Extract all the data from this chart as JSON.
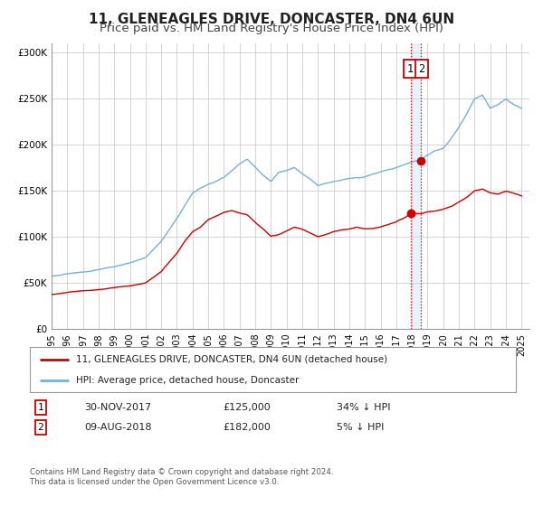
{
  "title": "11, GLENEAGLES DRIVE, DONCASTER, DN4 6UN",
  "subtitle": "Price paid vs. HM Land Registry's House Price Index (HPI)",
  "ylim": [
    0,
    310000
  ],
  "xlim_start": 1995.0,
  "xlim_end": 2025.5,
  "background_color": "#ffffff",
  "grid_color": "#cccccc",
  "line1_color": "#cc0000",
  "line2_color": "#7ab0d4",
  "point1_x": 2017.917,
  "point1_y": 125000,
  "point2_x": 2018.583,
  "point2_y": 182000,
  "legend_line1": "11, GLENEAGLES DRIVE, DONCASTER, DN4 6UN (detached house)",
  "legend_line2": "HPI: Average price, detached house, Doncaster",
  "table_row1": [
    "1",
    "30-NOV-2017",
    "£125,000",
    "34% ↓ HPI"
  ],
  "table_row2": [
    "2",
    "09-AUG-2018",
    "£182,000",
    "5% ↓ HPI"
  ],
  "footer1": "Contains HM Land Registry data © Crown copyright and database right 2024.",
  "footer2": "This data is licensed under the Open Government Licence v3.0.",
  "title_fontsize": 11,
  "subtitle_fontsize": 9.5,
  "hpi_anchors": [
    [
      1995.0,
      57000
    ],
    [
      1996.0,
      60000
    ],
    [
      1997.0,
      62000
    ],
    [
      1998.0,
      65000
    ],
    [
      1999.0,
      68000
    ],
    [
      2000.0,
      72000
    ],
    [
      2001.0,
      78000
    ],
    [
      2002.0,
      95000
    ],
    [
      2003.0,
      120000
    ],
    [
      2004.0,
      148000
    ],
    [
      2005.0,
      158000
    ],
    [
      2006.0,
      165000
    ],
    [
      2007.0,
      180000
    ],
    [
      2007.5,
      185000
    ],
    [
      2008.5,
      167000
    ],
    [
      2009.0,
      160000
    ],
    [
      2009.5,
      170000
    ],
    [
      2010.0,
      172000
    ],
    [
      2010.5,
      175000
    ],
    [
      2011.0,
      168000
    ],
    [
      2011.5,
      162000
    ],
    [
      2012.0,
      155000
    ],
    [
      2012.5,
      158000
    ],
    [
      2013.0,
      160000
    ],
    [
      2014.0,
      163000
    ],
    [
      2015.0,
      165000
    ],
    [
      2016.0,
      170000
    ],
    [
      2016.5,
      173000
    ],
    [
      2017.0,
      175000
    ],
    [
      2017.5,
      178000
    ],
    [
      2017.917,
      180000
    ],
    [
      2018.583,
      183000
    ],
    [
      2019.0,
      188000
    ],
    [
      2019.5,
      193000
    ],
    [
      2020.0,
      195000
    ],
    [
      2020.5,
      205000
    ],
    [
      2021.0,
      218000
    ],
    [
      2021.5,
      232000
    ],
    [
      2022.0,
      248000
    ],
    [
      2022.5,
      252000
    ],
    [
      2023.0,
      238000
    ],
    [
      2023.5,
      242000
    ],
    [
      2024.0,
      248000
    ],
    [
      2024.5,
      242000
    ],
    [
      2025.0,
      238000
    ]
  ],
  "red_anchors": [
    [
      1995.0,
      38000
    ],
    [
      1996.0,
      40000
    ],
    [
      1997.0,
      42000
    ],
    [
      1998.0,
      43000
    ],
    [
      1999.0,
      45000
    ],
    [
      2000.0,
      47000
    ],
    [
      2001.0,
      50000
    ],
    [
      2002.0,
      62000
    ],
    [
      2003.0,
      82000
    ],
    [
      2003.5,
      95000
    ],
    [
      2004.0,
      105000
    ],
    [
      2004.5,
      110000
    ],
    [
      2005.0,
      118000
    ],
    [
      2005.5,
      122000
    ],
    [
      2006.0,
      126000
    ],
    [
      2006.5,
      128000
    ],
    [
      2007.0,
      125000
    ],
    [
      2007.5,
      123000
    ],
    [
      2008.0,
      115000
    ],
    [
      2008.5,
      108000
    ],
    [
      2009.0,
      100000
    ],
    [
      2009.5,
      102000
    ],
    [
      2010.0,
      106000
    ],
    [
      2010.5,
      110000
    ],
    [
      2011.0,
      108000
    ],
    [
      2011.5,
      104000
    ],
    [
      2012.0,
      100000
    ],
    [
      2012.5,
      102000
    ],
    [
      2013.0,
      105000
    ],
    [
      2013.5,
      107000
    ],
    [
      2014.0,
      108000
    ],
    [
      2014.5,
      110000
    ],
    [
      2015.0,
      108000
    ],
    [
      2015.5,
      108000
    ],
    [
      2016.0,
      110000
    ],
    [
      2016.5,
      113000
    ],
    [
      2017.0,
      116000
    ],
    [
      2017.5,
      120000
    ],
    [
      2017.917,
      125000
    ],
    [
      2018.583,
      125000
    ],
    [
      2019.0,
      127000
    ],
    [
      2019.5,
      128000
    ],
    [
      2020.0,
      130000
    ],
    [
      2020.5,
      133000
    ],
    [
      2021.0,
      138000
    ],
    [
      2021.5,
      143000
    ],
    [
      2022.0,
      150000
    ],
    [
      2022.5,
      152000
    ],
    [
      2023.0,
      148000
    ],
    [
      2023.5,
      147000
    ],
    [
      2024.0,
      150000
    ],
    [
      2024.5,
      148000
    ],
    [
      2025.0,
      145000
    ]
  ]
}
